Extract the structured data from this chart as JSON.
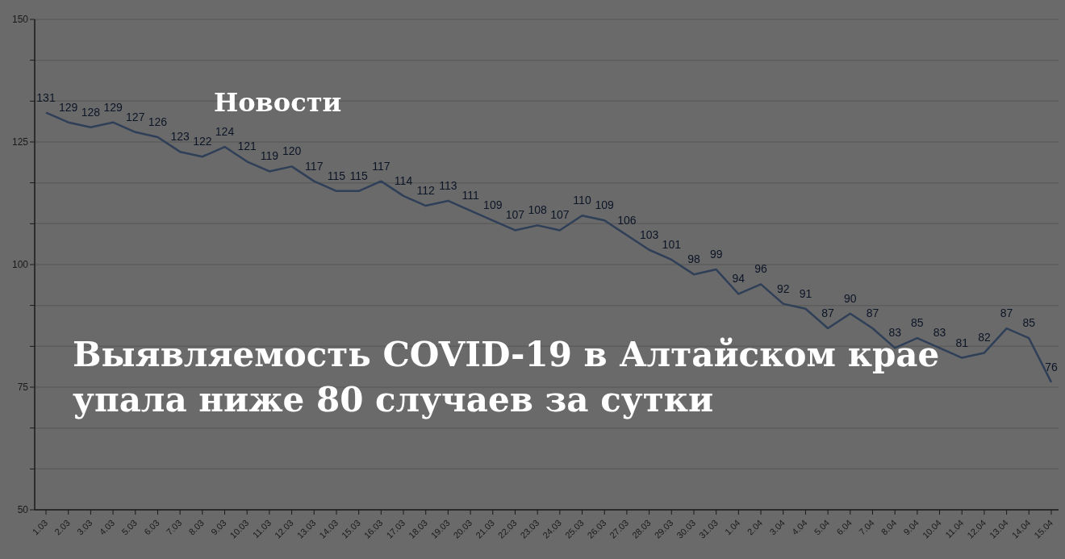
{
  "chart_data": {
    "type": "line",
    "title": "Выявляемость COVID-19 в Алтайском крае упала ниже 80 случаев за сутки",
    "annotations": [
      "Новости"
    ],
    "categories": [
      "1.03",
      "2.03",
      "3.03",
      "4.03",
      "5.03",
      "6.03",
      "7.03",
      "8.03",
      "9.03",
      "10.03",
      "11.03",
      "12.03",
      "13.03",
      "14.03",
      "15.03",
      "16.03",
      "17.03",
      "18.03",
      "19.03",
      "20.03",
      "21.03",
      "22.03",
      "23.03",
      "24.03",
      "25.03",
      "26.03",
      "27.03",
      "28.03",
      "29.03",
      "30.03",
      "31.03",
      "1.04",
      "2.04",
      "3.04",
      "4.04",
      "5.04",
      "6.04",
      "7.04",
      "8.04",
      "9.04",
      "10.04",
      "11.04",
      "12.04",
      "13.04",
      "14.04",
      "15.04"
    ],
    "values": [
      131,
      129,
      128,
      129,
      127,
      126,
      123,
      122,
      124,
      121,
      119,
      120,
      117,
      115,
      115,
      117,
      114,
      112,
      113,
      111,
      109,
      107,
      108,
      107,
      110,
      109,
      106,
      103,
      101,
      98,
      99,
      94,
      96,
      92,
      91,
      87,
      90,
      87,
      83,
      85,
      83,
      81,
      82,
      87,
      85,
      76
    ],
    "color": "#2f3f58",
    "data_labels": true,
    "grid": "y",
    "marker": "none",
    "line_style": "solid",
    "ylim": [
      50,
      150
    ],
    "yticks": [
      50,
      {
        "value": 58.33,
        "label": null
      },
      {
        "value": 66.67,
        "label": null
      },
      75,
      {
        "value": 83.33,
        "label": null
      },
      {
        "value": 91.67,
        "label": null
      },
      100,
      {
        "value": 108.33,
        "label": null
      },
      {
        "value": 116.67,
        "label": null
      },
      125,
      {
        "value": 133.33,
        "label": null
      },
      {
        "value": 141.67,
        "label": null
      },
      150
    ]
  }
}
